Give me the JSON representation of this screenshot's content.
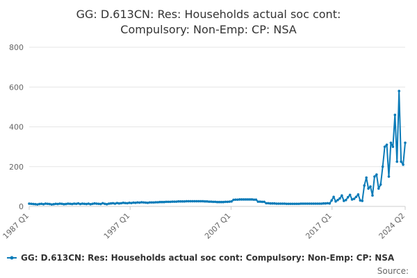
{
  "chart_data": {
    "type": "line",
    "title_lines": [
      "GG: D.613CN: Res: Households actual soc cont:",
      "Compulsory: Non-Emp: CP: NSA"
    ],
    "series_name": "GG: D.613CN: Res: Households actual soc cont: Compulsory: Non-Emp: CP: NSA",
    "source_label": "Source:",
    "ylim": [
      0,
      800
    ],
    "y_ticks": [
      0,
      200,
      400,
      600,
      800
    ],
    "x_ticks": [
      "1987 Q1",
      "1997 Q1",
      "2007 Q1",
      "2017 Q1",
      "2024 Q2"
    ],
    "grid": true,
    "legend_position": "bottom-center",
    "line_color": "#0b7bb8",
    "x_start": "1987 Q1",
    "x_end": "2024 Q2",
    "values": [
      14,
      13,
      12,
      11,
      10,
      12,
      13,
      11,
      14,
      13,
      12,
      10,
      11,
      13,
      12,
      14,
      13,
      11,
      12,
      14,
      13,
      12,
      14,
      13,
      15,
      12,
      14,
      13,
      12,
      14,
      11,
      13,
      15,
      14,
      13,
      12,
      16,
      13,
      11,
      14,
      15,
      16,
      14,
      17,
      15,
      16,
      18,
      17,
      16,
      18,
      17,
      19,
      18,
      20,
      19,
      21,
      20,
      19,
      18,
      20,
      20,
      20,
      21,
      21,
      22,
      22,
      22,
      23,
      23,
      23,
      24,
      24,
      24,
      25,
      25,
      25,
      25,
      26,
      26,
      26,
      26,
      26,
      26,
      26,
      26,
      26,
      25,
      25,
      24,
      24,
      23,
      23,
      22,
      22,
      22,
      22,
      23,
      23,
      24,
      25,
      33,
      34,
      34,
      35,
      35,
      35,
      35,
      35,
      35,
      35,
      34,
      34,
      24,
      24,
      23,
      23,
      16,
      16,
      15,
      15,
      15,
      14,
      14,
      14,
      14,
      14,
      13,
      13,
      13,
      13,
      13,
      13,
      13,
      14,
      14,
      14,
      14,
      14,
      14,
      14,
      14,
      14,
      14,
      14,
      15,
      15,
      16,
      15,
      30,
      48,
      25,
      32,
      40,
      55,
      28,
      32,
      46,
      58,
      35,
      38,
      48,
      60,
      30,
      28,
      105,
      145,
      90,
      100,
      55,
      150,
      160,
      90,
      110,
      200,
      300,
      310,
      150,
      320,
      300,
      460,
      225,
      580,
      225,
      210,
      320
    ]
  }
}
